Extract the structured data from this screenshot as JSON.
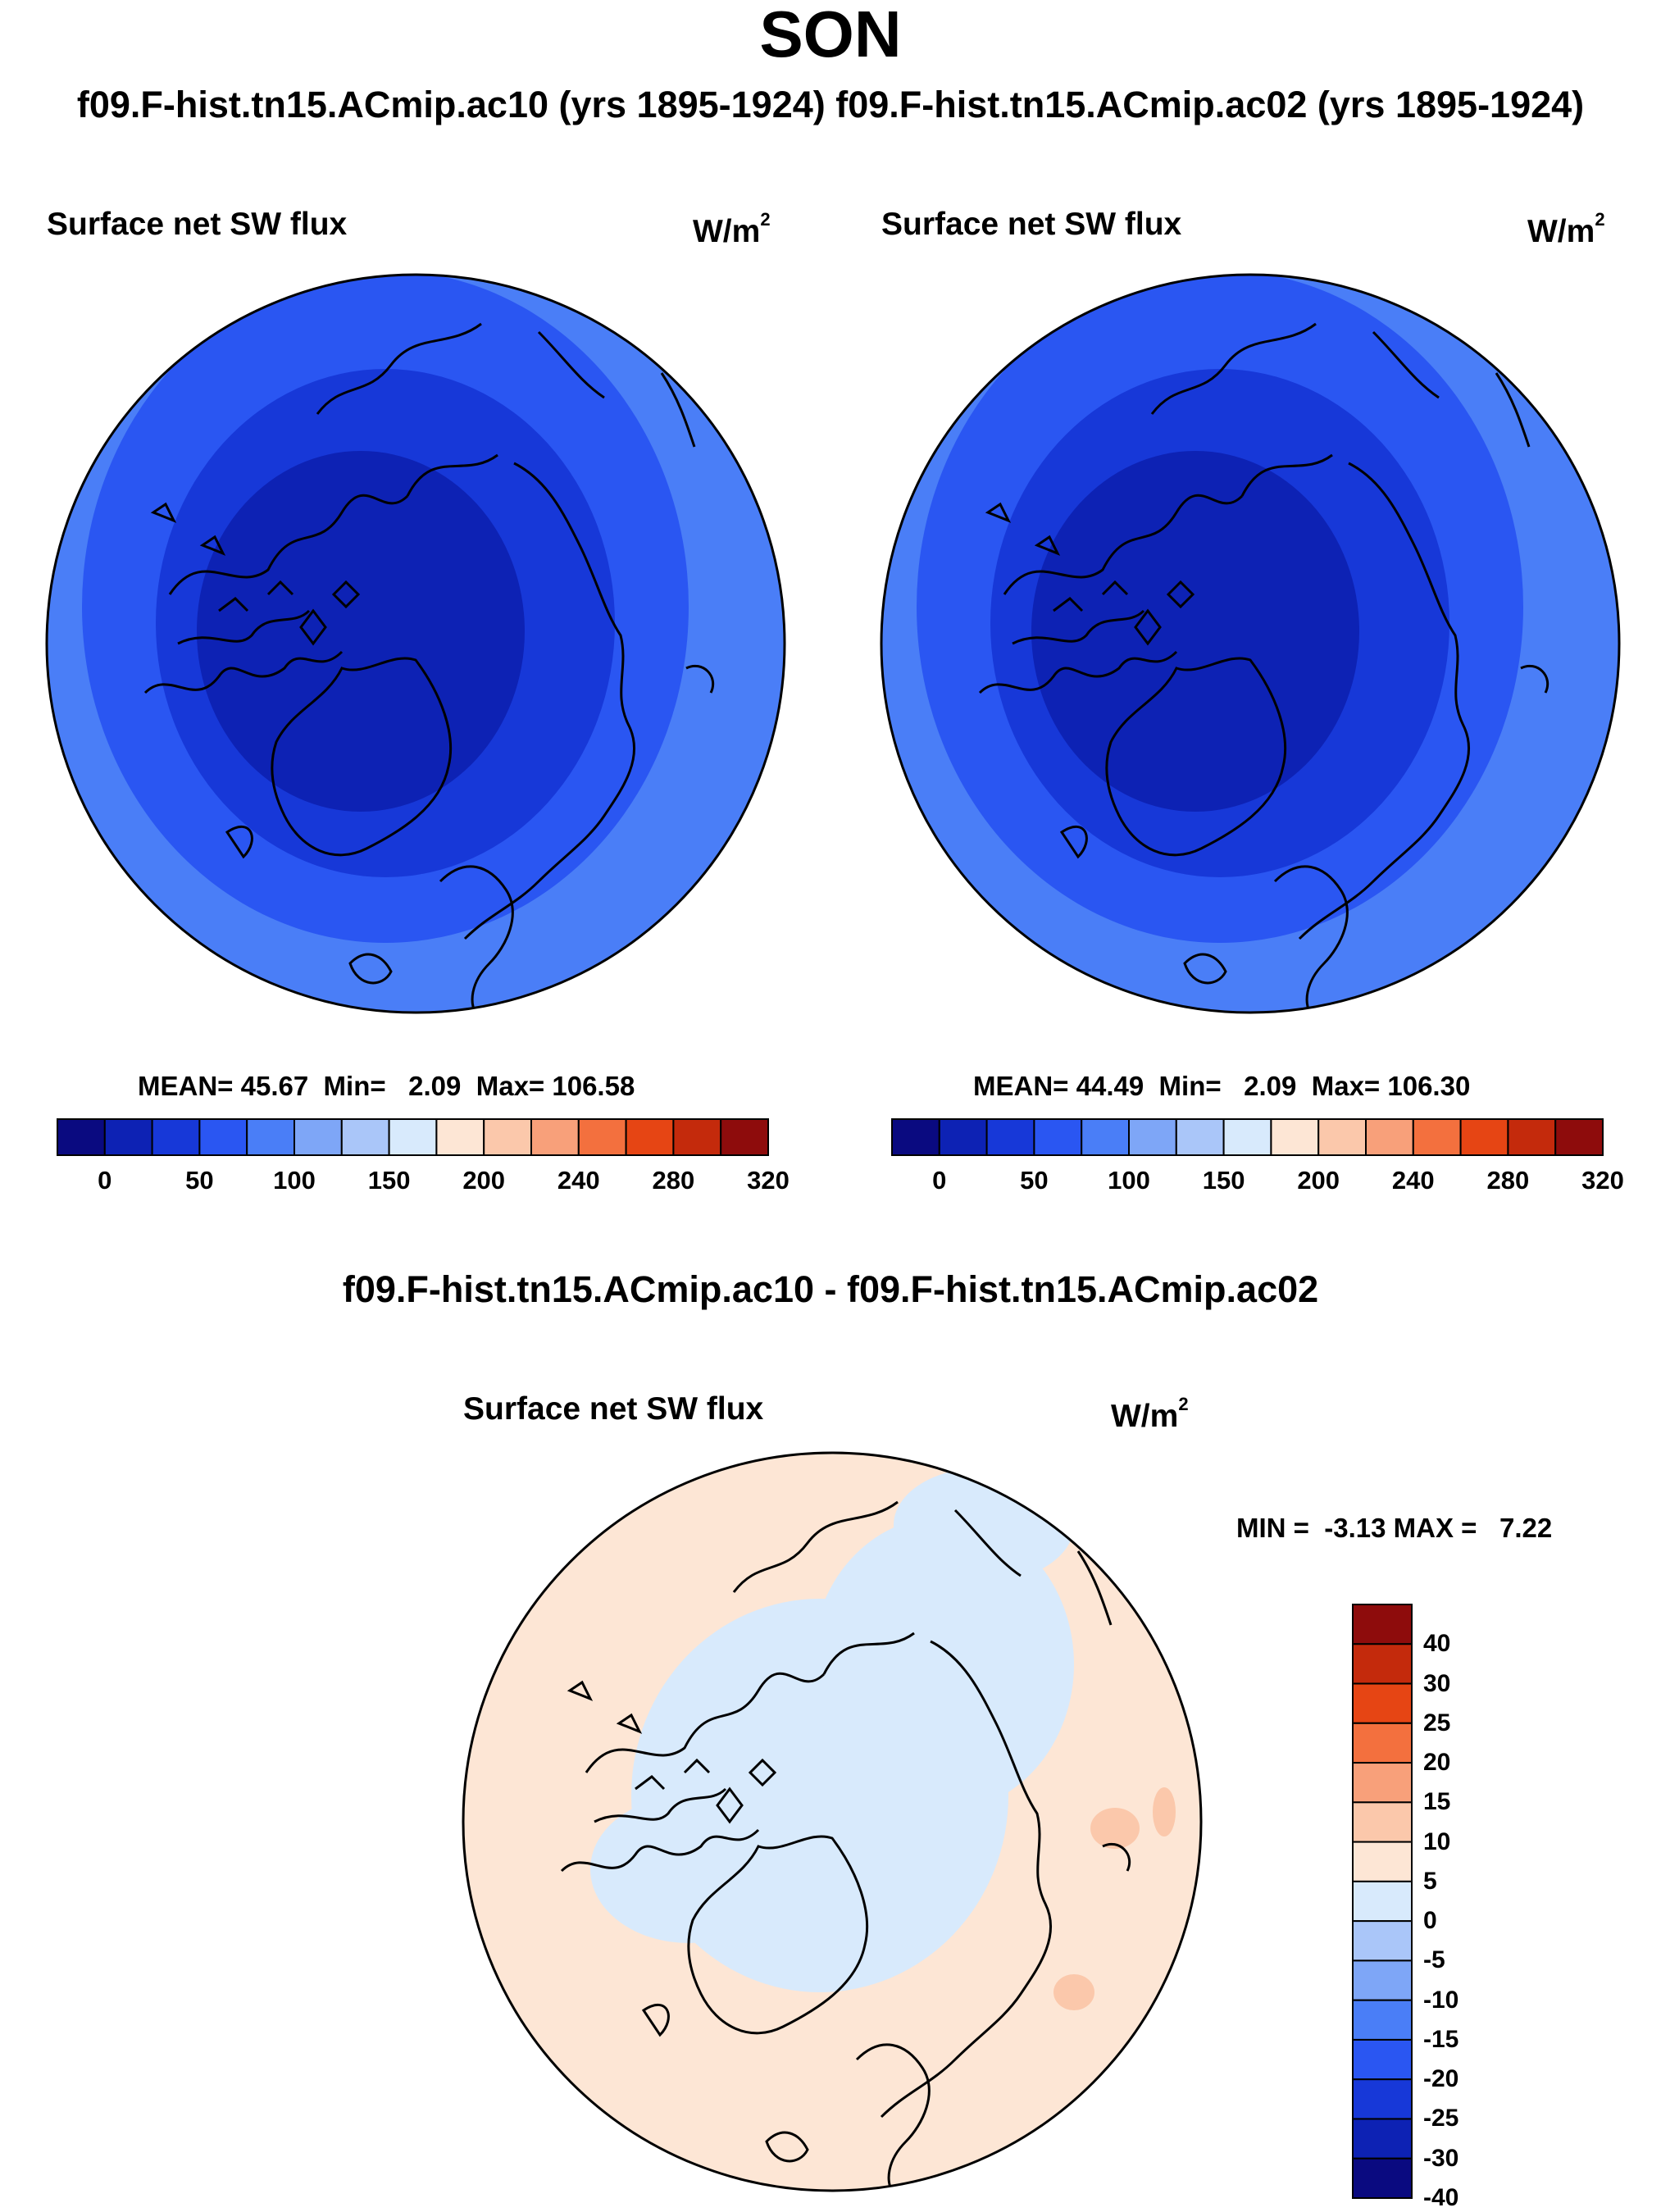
{
  "page": {
    "title": "SON",
    "subtitle": "f09.F-hist.tn15.ACmip.ac10 (yrs 1895-1924)  f09.F-hist.tn15.ACmip.ac02 (yrs 1895-1924)"
  },
  "colors": {
    "level_colors": [
      "#0a0a80",
      "#0d22b4",
      "#1738d8",
      "#2a56f2",
      "#4a7ef7",
      "#7ea6f7",
      "#aac6f9",
      "#d8eafc",
      "#fde6d5",
      "#fbc8ab",
      "#f8a07a",
      "#f3703e",
      "#e64514",
      "#c42a0c",
      "#8e0c0c"
    ],
    "map_fill_outer": "#4a7ef7",
    "map_fill_mid": "#2a56f2",
    "map_fill_inner": "#1738d8",
    "map_fill_core": "#0d22b4",
    "diff_base": "#fde6d5",
    "diff_neg": "#d8eafc",
    "diff_pos": "#fbc8ab"
  },
  "chart_data": [
    {
      "type": "heatmap",
      "projection": "north-polar-stereographic",
      "title": "Surface net SW flux",
      "units": "W/m",
      "units_superscript": "2",
      "stats": {
        "mean_label": "MEAN=",
        "mean": "45.67",
        "min_label": "Min=",
        "min": "2.09",
        "max_label": "Max=",
        "max": "106.58"
      },
      "colorbar": {
        "orientation": "horizontal",
        "levels": [
          0,
          25,
          50,
          75,
          100,
          125,
          150,
          175,
          200,
          220,
          240,
          260,
          280,
          300,
          320
        ],
        "tick_labels": [
          "0",
          "50",
          "100",
          "150",
          "200",
          "240",
          "280",
          "320"
        ]
      }
    },
    {
      "type": "heatmap",
      "projection": "north-polar-stereographic",
      "title": "Surface net SW flux",
      "units": "W/m",
      "units_superscript": "2",
      "stats": {
        "mean_label": "MEAN=",
        "mean": "44.49",
        "min_label": "Min=",
        "min": "2.09",
        "max_label": "Max=",
        "max": "106.30"
      },
      "colorbar": {
        "orientation": "horizontal",
        "levels": [
          0,
          25,
          50,
          75,
          100,
          125,
          150,
          175,
          200,
          220,
          240,
          260,
          280,
          300,
          320
        ],
        "tick_labels": [
          "0",
          "50",
          "100",
          "150",
          "200",
          "240",
          "280",
          "320"
        ]
      }
    },
    {
      "type": "heatmap",
      "projection": "north-polar-stereographic",
      "figure_title": "f09.F-hist.tn15.ACmip.ac10 - f09.F-hist.tn15.ACmip.ac02",
      "title": "Surface net SW flux",
      "units": "W/m",
      "units_superscript": "2",
      "stats": {
        "min_label": "MIN =",
        "min": "-3.13",
        "max_label": "MAX =",
        "max": "7.22"
      },
      "colorbar": {
        "orientation": "vertical",
        "levels": [
          -40,
          -30,
          -25,
          -20,
          -15,
          -10,
          -5,
          0,
          5,
          10,
          15,
          20,
          25,
          30,
          40
        ],
        "tick_labels": [
          "40",
          "30",
          "25",
          "20",
          "15",
          "10",
          "5",
          "0",
          "-5",
          "-10",
          "-15",
          "-20",
          "-25",
          "-30",
          "-40"
        ]
      }
    }
  ]
}
